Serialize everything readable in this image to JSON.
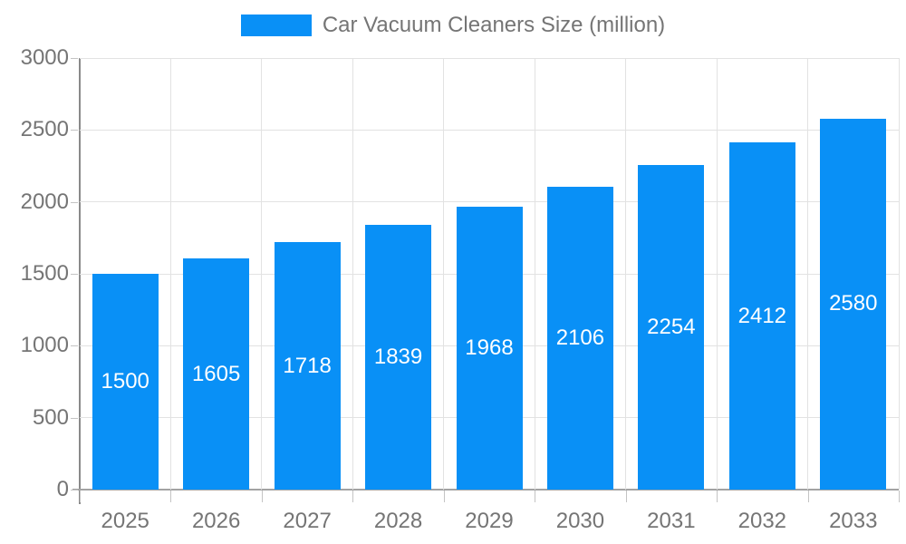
{
  "legend": {
    "label": "Car Vacuum Cleaners Size (million)"
  },
  "colors": {
    "bar": "#0990f6",
    "bar_label": "#ffffff",
    "grid": "#e2e2e2",
    "axis_y": "#8a8a8a",
    "axis_x": "#a3a3a3",
    "tick": "#c4c4c4",
    "text": "#757575",
    "background": "#ffffff"
  },
  "chart_data": {
    "type": "bar",
    "title": "Car Vacuum Cleaners Size (million)",
    "series_name": "Car Vacuum Cleaners Size (million)",
    "categories": [
      "2025",
      "2026",
      "2027",
      "2028",
      "2029",
      "2030",
      "2031",
      "2032",
      "2033"
    ],
    "values": [
      1500,
      1605,
      1718,
      1839,
      1968,
      2106,
      2254,
      2412,
      2580
    ],
    "xlabel": "",
    "ylabel": "",
    "ylim": [
      0,
      3000
    ],
    "yticks": [
      0,
      500,
      1000,
      1500,
      2000,
      2500,
      3000
    ],
    "grid": true,
    "legend_position": "top",
    "bar_labels": "inside-center"
  }
}
